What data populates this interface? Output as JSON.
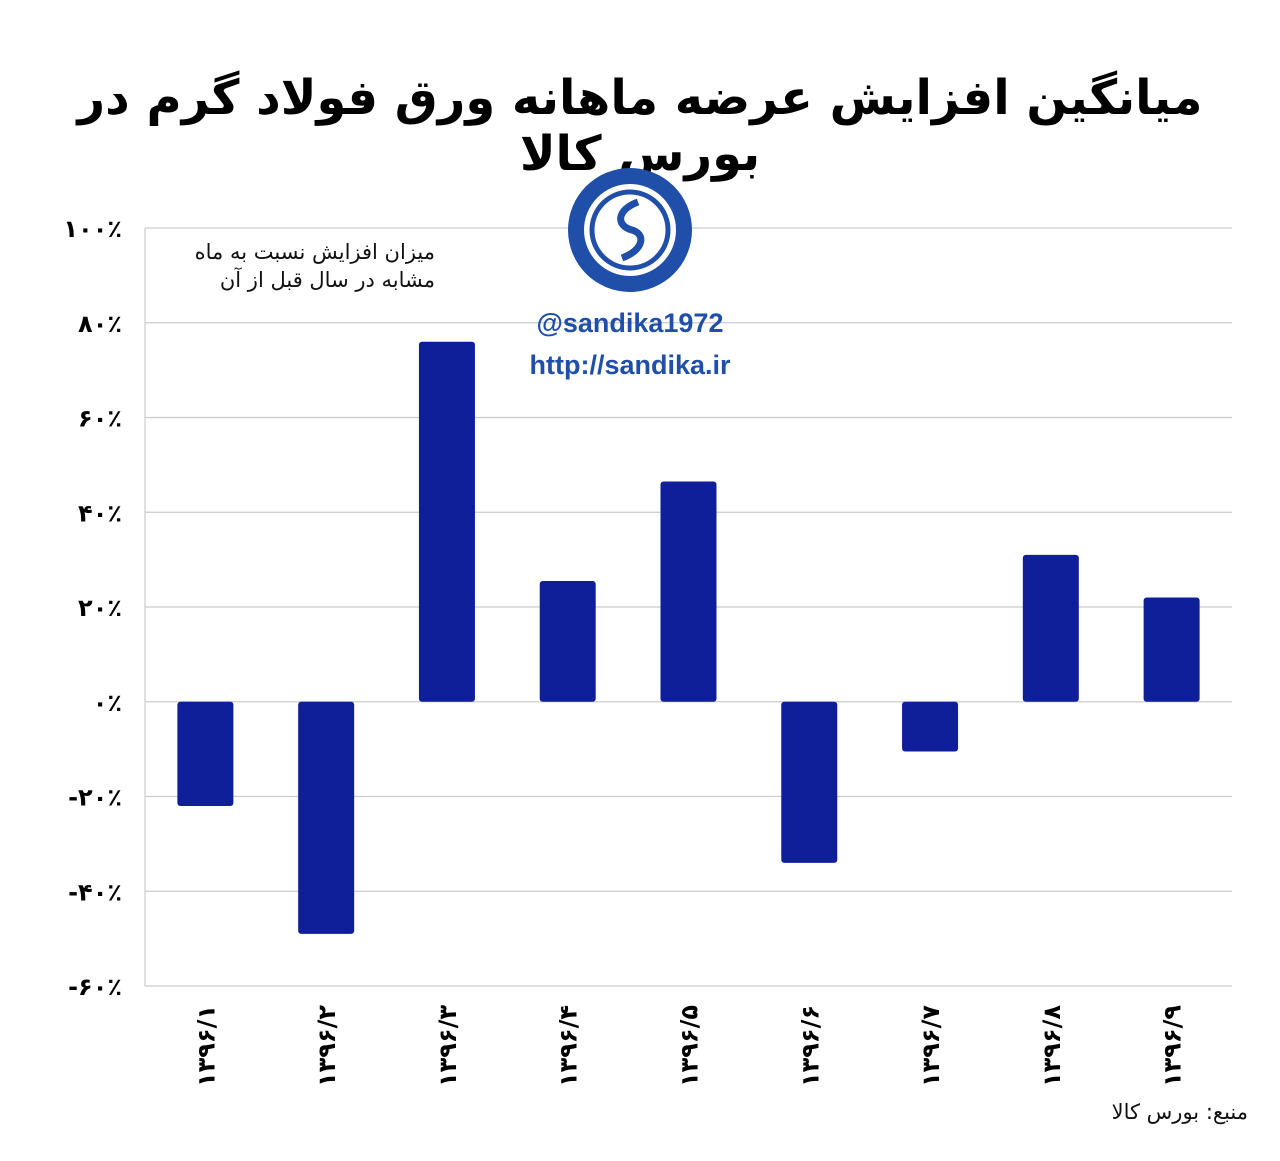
{
  "title": "میانگین افزایش عرضه ماهانه ورق فولاد گرم در بورس کالا",
  "note_lines": [
    "میزان افزایش نسبت به ماه",
    "مشابه در سال قبل از آن"
  ],
  "watermark": {
    "handle": "@sandika1972",
    "url": "http://sandika.ir"
  },
  "source": "منبع: بورس کالا",
  "colors": {
    "bar": "#0f1f9a",
    "grid": "#cccccc",
    "logo": "#1f4fa8"
  },
  "chart_data": {
    "type": "bar",
    "title": "میانگین افزایش عرضه ماهانه ورق فولاد گرم در بورس کالا",
    "xlabel": "",
    "ylabel": "",
    "categories": [
      "۱۳۹۶/۱",
      "۱۳۹۶/۲",
      "۱۳۹۶/۳",
      "۱۳۹۶/۴",
      "۱۳۹۶/۵",
      "۱۳۹۶/۶",
      "۱۳۹۶/۷",
      "۱۳۹۶/۸",
      "۱۳۹۶/۹"
    ],
    "values": [
      -22,
      -49,
      76,
      25.5,
      46.5,
      -34,
      -10.5,
      31,
      22
    ],
    "ylim": [
      -60,
      100
    ],
    "yticks": [
      100,
      80,
      60,
      40,
      20,
      0,
      -20,
      -40,
      -60
    ],
    "ytick_labels": [
      "۱۰۰٪",
      "۸۰٪",
      "۶۰٪",
      "۴۰٪",
      "۲۰٪",
      "۰٪",
      "-۲۰٪",
      "-۴۰٪",
      "-۶۰٪"
    ],
    "grid": true,
    "legend": "none"
  }
}
